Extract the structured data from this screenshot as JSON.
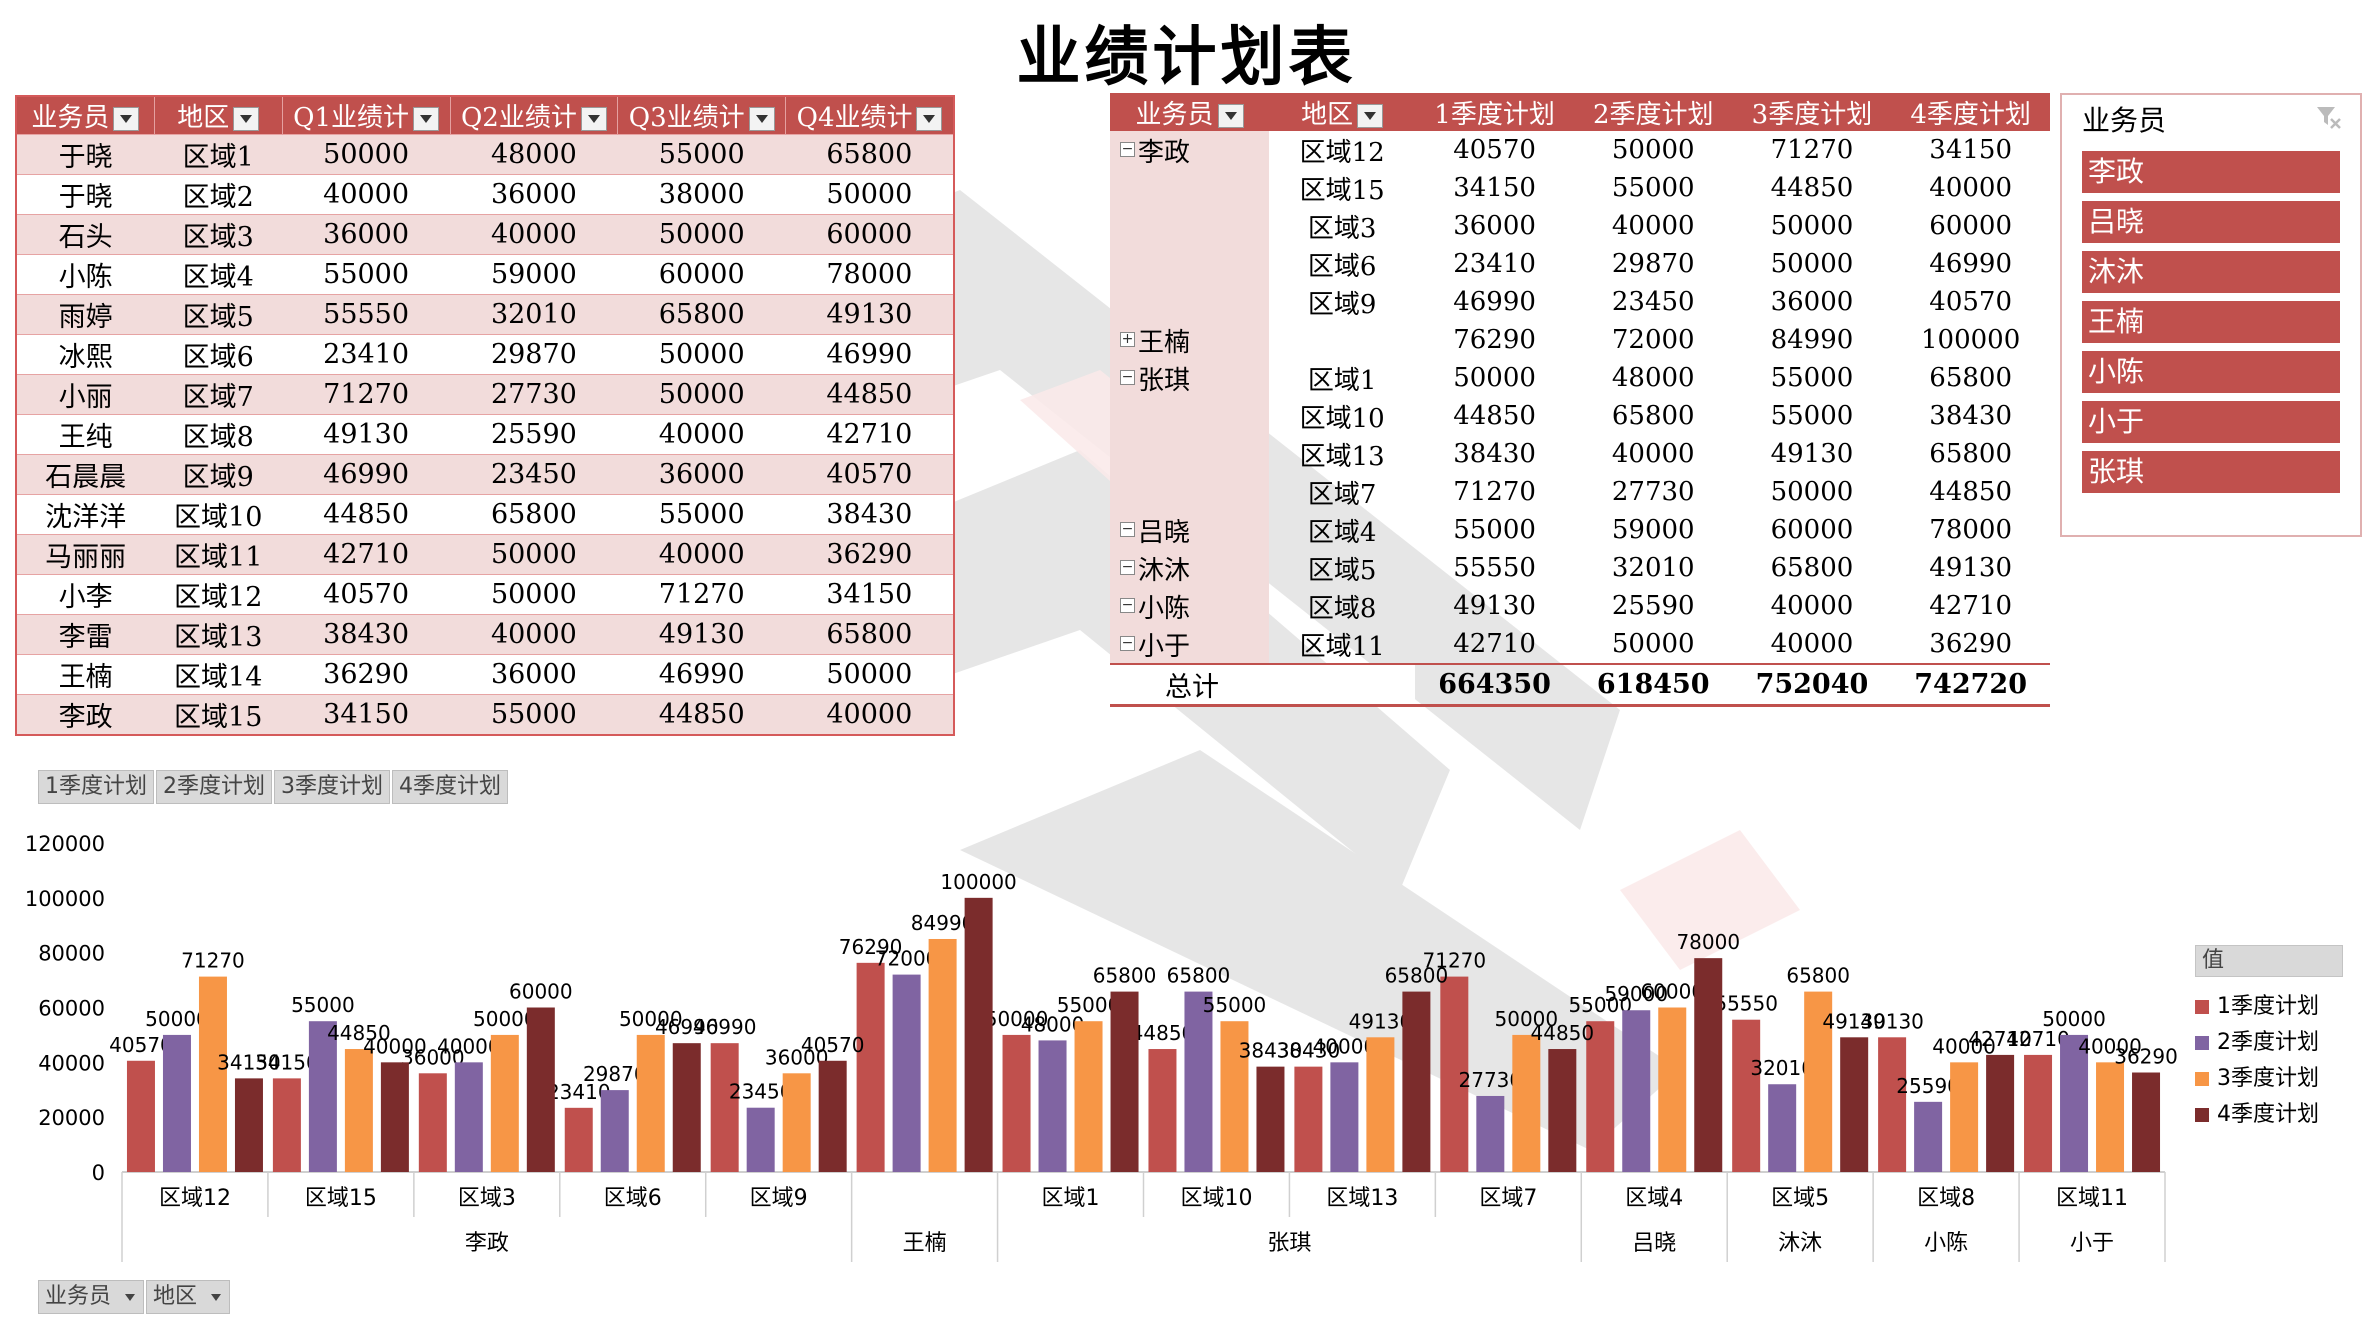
{
  "title": "业绩计划表",
  "left_table": {
    "headers": [
      "业务员",
      "地区",
      "Q1业绩计",
      "Q2业绩计",
      "Q3业绩计",
      "Q4业绩计"
    ],
    "rows": [
      [
        "于晓",
        "区域1",
        "50000",
        "48000",
        "55000",
        "65800"
      ],
      [
        "于晓",
        "区域2",
        "40000",
        "36000",
        "38000",
        "50000"
      ],
      [
        "石头",
        "区域3",
        "36000",
        "40000",
        "50000",
        "60000"
      ],
      [
        "小陈",
        "区域4",
        "55000",
        "59000",
        "60000",
        "78000"
      ],
      [
        "雨婷",
        "区域5",
        "55550",
        "32010",
        "65800",
        "49130"
      ],
      [
        "冰熙",
        "区域6",
        "23410",
        "29870",
        "50000",
        "46990"
      ],
      [
        "小丽",
        "区域7",
        "71270",
        "27730",
        "50000",
        "44850"
      ],
      [
        "王纯",
        "区域8",
        "49130",
        "25590",
        "40000",
        "42710"
      ],
      [
        "石晨晨",
        "区域9",
        "46990",
        "23450",
        "36000",
        "40570"
      ],
      [
        "沈洋洋",
        "区域10",
        "44850",
        "65800",
        "55000",
        "38430"
      ],
      [
        "马丽丽",
        "区域11",
        "42710",
        "50000",
        "40000",
        "36290"
      ],
      [
        "小李",
        "区域12",
        "40570",
        "50000",
        "71270",
        "34150"
      ],
      [
        "李雷",
        "区域13",
        "38430",
        "40000",
        "49130",
        "65800"
      ],
      [
        "王楠",
        "区域14",
        "36290",
        "36000",
        "46990",
        "50000"
      ],
      [
        "李政",
        "区域15",
        "34150",
        "55000",
        "44850",
        "40000"
      ]
    ]
  },
  "pivot": {
    "headers": [
      "业务员",
      "地区",
      "1季度计划",
      "2季度计划",
      "3季度计划",
      "4季度计划"
    ],
    "rows": [
      {
        "name": "李政",
        "exp": "−",
        "cells": [
          "区域12",
          "40570",
          "50000",
          "71270",
          "34150"
        ]
      },
      {
        "name": "",
        "exp": "",
        "cells": [
          "区域15",
          "34150",
          "55000",
          "44850",
          "40000"
        ]
      },
      {
        "name": "",
        "exp": "",
        "cells": [
          "区域3",
          "36000",
          "40000",
          "50000",
          "60000"
        ]
      },
      {
        "name": "",
        "exp": "",
        "cells": [
          "区域6",
          "23410",
          "29870",
          "50000",
          "46990"
        ]
      },
      {
        "name": "",
        "exp": "",
        "cells": [
          "区域9",
          "46990",
          "23450",
          "36000",
          "40570"
        ]
      },
      {
        "name": "王楠",
        "exp": "+",
        "cells": [
          "",
          "76290",
          "72000",
          "84990",
          "100000"
        ]
      },
      {
        "name": "张琪",
        "exp": "−",
        "cells": [
          "区域1",
          "50000",
          "48000",
          "55000",
          "65800"
        ]
      },
      {
        "name": "",
        "exp": "",
        "cells": [
          "区域10",
          "44850",
          "65800",
          "55000",
          "38430"
        ]
      },
      {
        "name": "",
        "exp": "",
        "cells": [
          "区域13",
          "38430",
          "40000",
          "49130",
          "65800"
        ]
      },
      {
        "name": "",
        "exp": "",
        "cells": [
          "区域7",
          "71270",
          "27730",
          "50000",
          "44850"
        ]
      },
      {
        "name": "吕晓",
        "exp": "−",
        "cells": [
          "区域4",
          "55000",
          "59000",
          "60000",
          "78000"
        ]
      },
      {
        "name": "沐沐",
        "exp": "−",
        "cells": [
          "区域5",
          "55550",
          "32010",
          "65800",
          "49130"
        ]
      },
      {
        "name": "小陈",
        "exp": "−",
        "cells": [
          "区域8",
          "49130",
          "25590",
          "40000",
          "42710"
        ]
      },
      {
        "name": "小于",
        "exp": "−",
        "cells": [
          "区域11",
          "42710",
          "50000",
          "40000",
          "36290"
        ]
      }
    ],
    "total_label": "总计",
    "totals": [
      "664350",
      "618450",
      "752040",
      "742720"
    ]
  },
  "slicer": {
    "header": "业务员",
    "items": [
      "李政",
      "吕晓",
      "沐沐",
      "王楠",
      "小陈",
      "小于",
      "张琪"
    ]
  },
  "chart_buttons": [
    "1季度计划",
    "2季度计划",
    "3季度计划",
    "4季度计划"
  ],
  "row_buttons": [
    "业务员",
    "地区"
  ],
  "legend": {
    "header": "值",
    "items": [
      "1季度计划",
      "2季度计划",
      "3季度计划",
      "4季度计划"
    ]
  },
  "colors": {
    "accent": "#c0504d",
    "series": [
      "#c0504d",
      "#8064a2",
      "#f79646",
      "#7b2c2c"
    ]
  },
  "chart_data": {
    "type": "bar",
    "ylim": [
      0,
      120000
    ],
    "yticks": [
      0,
      20000,
      40000,
      60000,
      80000,
      100000,
      120000
    ],
    "categories": [
      "区域12",
      "区域15",
      "区域3",
      "区域6",
      "区域9",
      "",
      "区域1",
      "区域10",
      "区域13",
      "区域7",
      "区域4",
      "区域5",
      "区域8",
      "区域11"
    ],
    "groups": [
      {
        "name": "李政",
        "count": 5
      },
      {
        "name": "王楠",
        "count": 1
      },
      {
        "name": "张琪",
        "count": 4
      },
      {
        "name": "吕晓",
        "count": 1
      },
      {
        "name": "沐沐",
        "count": 1
      },
      {
        "name": "小陈",
        "count": 1
      },
      {
        "name": "小于",
        "count": 1
      }
    ],
    "series": [
      {
        "name": "1季度计划",
        "values": [
          40570,
          34150,
          36000,
          23410,
          46990,
          76290,
          50000,
          44850,
          38430,
          71270,
          55000,
          55550,
          49130,
          42710
        ]
      },
      {
        "name": "2季度计划",
        "values": [
          50000,
          55000,
          40000,
          29870,
          23450,
          72000,
          48000,
          65800,
          40000,
          27730,
          59000,
          32010,
          25590,
          50000
        ]
      },
      {
        "name": "3季度计划",
        "values": [
          71270,
          44850,
          50000,
          50000,
          36000,
          84990,
          55000,
          55000,
          49130,
          50000,
          60000,
          65800,
          40000,
          40000
        ]
      },
      {
        "name": "4季度计划",
        "values": [
          34150,
          40000,
          60000,
          46990,
          40570,
          100000,
          65800,
          38430,
          65800,
          44850,
          78000,
          49130,
          42710,
          36290
        ]
      }
    ]
  }
}
